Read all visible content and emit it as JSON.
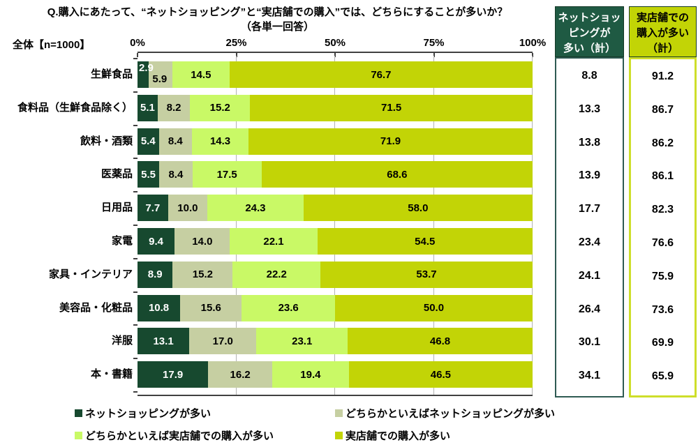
{
  "title": "Q.購入にあたって、“ネットショッピング”と“実店舗での購入”では、どちらにすることが多いか？",
  "subtitle": "（各単一回答）",
  "sample_label": "全体【n=1000】",
  "axis": {
    "ticks": [
      "0%",
      "25%",
      "50%",
      "75%",
      "100%"
    ],
    "min": 0,
    "max": 100
  },
  "chart_data": {
    "type": "bar",
    "orientation": "horizontal",
    "stacked": true,
    "xlim": [
      0,
      100
    ],
    "categories": [
      "生鮮食品",
      "食料品（生鮮食品除く）",
      "飲料・酒類",
      "医薬品",
      "日用品",
      "家電",
      "家具・インテリア",
      "美容品・化粧品",
      "洋服",
      "本・書籍"
    ],
    "series": [
      {
        "name": "ネットショッピングが多い",
        "color": "#17492f",
        "text_color": "#ffffff",
        "values": [
          2.9,
          5.1,
          5.4,
          5.5,
          7.7,
          9.4,
          8.9,
          10.8,
          13.1,
          17.9
        ]
      },
      {
        "name": "どちらかといえばネットショッピングが多い",
        "color": "#c6cfa2",
        "text_color": "#000000",
        "values": [
          5.9,
          8.2,
          8.4,
          8.4,
          10.0,
          14.0,
          15.2,
          15.6,
          17.0,
          16.2
        ]
      },
      {
        "name": "どちらかといえば実店舗での購入が多い",
        "color": "#c9f966",
        "text_color": "#000000",
        "values": [
          14.5,
          15.2,
          14.3,
          17.5,
          24.3,
          22.1,
          22.2,
          23.6,
          23.1,
          19.4
        ]
      },
      {
        "name": "実店舗での購入が多い",
        "color": "#c2d406",
        "text_color": "#000000",
        "values": [
          76.7,
          71.5,
          71.9,
          68.6,
          58.0,
          54.5,
          53.7,
          50.0,
          46.8,
          46.5
        ]
      }
    ]
  },
  "summary_columns": [
    {
      "id": "net-total",
      "header": "ネットショッ\nピングが\n多い（計）",
      "header_bg": "#1f5a43",
      "header_text_color": "#ffffff",
      "border_color": "#2e5a52",
      "values": [
        8.8,
        13.3,
        13.8,
        13.9,
        17.7,
        23.4,
        24.1,
        26.4,
        30.1,
        34.1
      ]
    },
    {
      "id": "store-total",
      "header": "実店舗での\n購入が多い\n（計）",
      "header_bg": "#c2d406",
      "header_text_color": "#000000",
      "border_color": "#cede2a",
      "values": [
        91.2,
        86.7,
        86.2,
        86.1,
        82.3,
        76.6,
        75.9,
        73.6,
        69.9,
        65.9
      ]
    }
  ],
  "legend": [
    {
      "label": "ネットショッピングが多い",
      "color": "#17492f"
    },
    {
      "label": "どちらかといえばネットショッピングが多い",
      "color": "#c6cfa2"
    },
    {
      "label": "どちらかといえば実店舗での購入が多い",
      "color": "#c9f966"
    },
    {
      "label": "実店舗での購入が多い",
      "color": "#c2d406"
    }
  ],
  "colors": {
    "grid": "#b3b3b3",
    "axis": "#404040"
  }
}
